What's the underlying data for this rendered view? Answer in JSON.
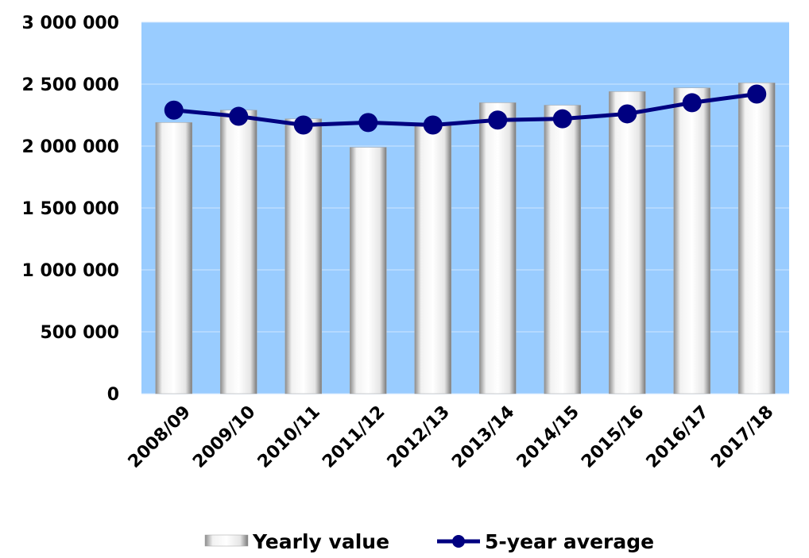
{
  "chart_data": {
    "type": "bar-line",
    "categories": [
      "2008/09",
      "2009/10",
      "2010/11",
      "2011/12",
      "2012/13",
      "2013/14",
      "2014/15",
      "2015/16",
      "2016/17",
      "2017/18"
    ],
    "series": [
      {
        "name": "Yearly value",
        "type": "bar",
        "color": "#ffffff",
        "values": [
          2190000,
          2290000,
          2220000,
          1990000,
          2170000,
          2350000,
          2330000,
          2440000,
          2470000,
          2510000
        ]
      },
      {
        "name": "5-year average",
        "type": "line",
        "color": "#000080",
        "values": [
          2290000,
          2240000,
          2170000,
          2190000,
          2170000,
          2210000,
          2220000,
          2260000,
          2350000,
          2420000
        ]
      }
    ],
    "ylim": [
      0,
      3000000
    ],
    "yticks": [
      0,
      {
        "value": 500000,
        "label": "500 000"
      },
      {
        "value": 1000000,
        "label": "1 000 000"
      },
      {
        "value": 1500000,
        "label": "1 500 000"
      },
      {
        "value": 2000000,
        "label": "2 000 000"
      },
      {
        "value": 2500000,
        "label": "2 500 000"
      },
      {
        "value": 3000000,
        "label": "3 000 000"
      }
    ],
    "grid": true,
    "plot_background": "#99ccff",
    "legend": "bottom"
  }
}
